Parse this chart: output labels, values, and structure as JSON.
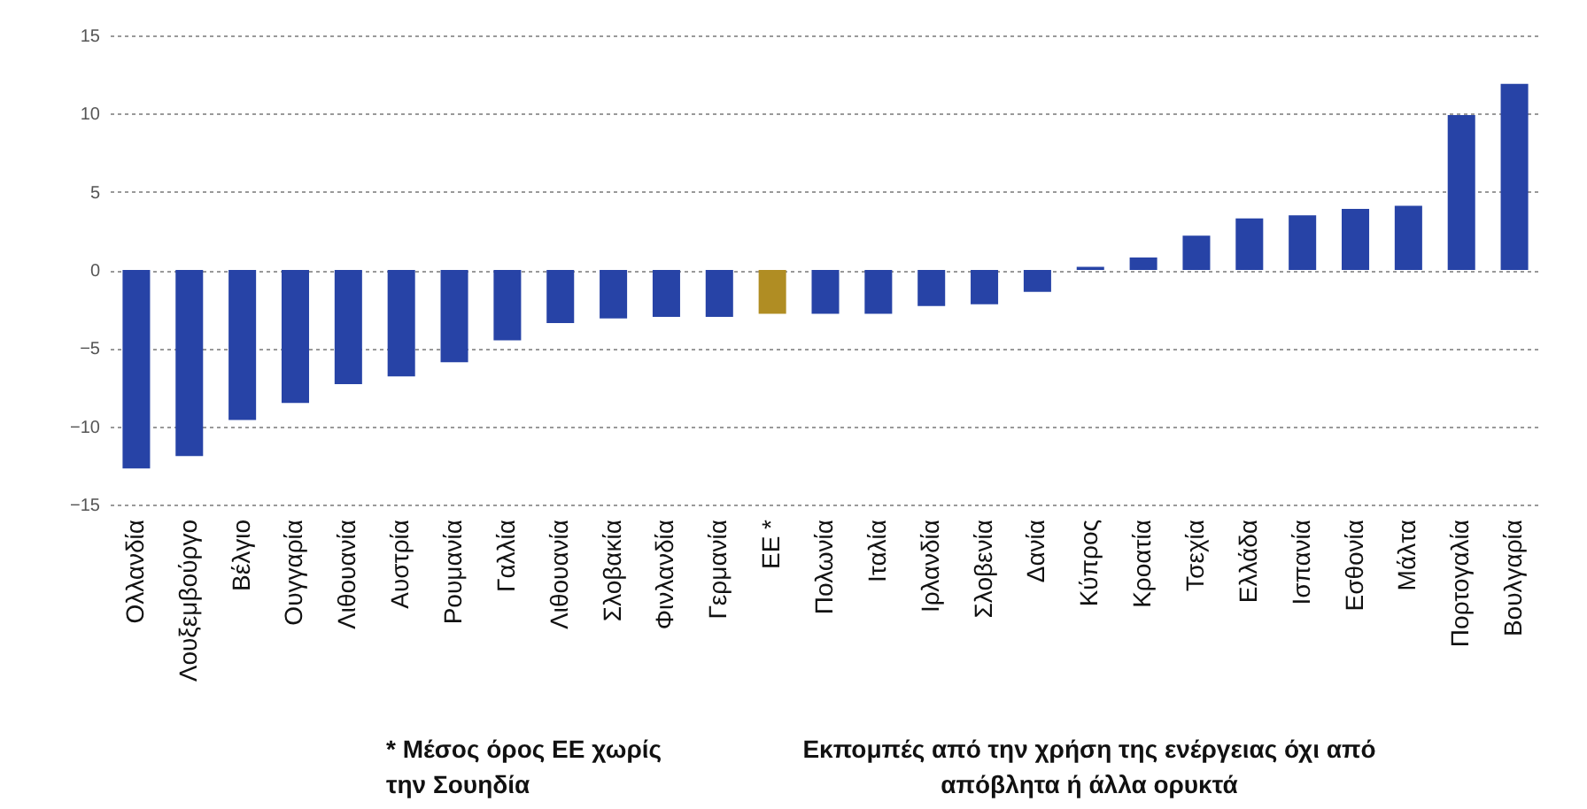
{
  "chart_data": {
    "type": "bar",
    "categories": [
      "Ολλανδία",
      "Λουξεμβούργο",
      "Βέλγιο",
      "Ουγγαρία",
      "Λιθουανία",
      "Αυστρία",
      "Ρουμανία",
      "Γαλλία",
      "Λιθουανία",
      "Σλοβακία",
      "Φινλανδία",
      "Γερμανία",
      "ΕΕ *",
      "Πολωνία",
      "Ιταλία",
      "Ιρλανδία",
      "Σλοβενία",
      "Δανία",
      "Κύπρος",
      "Κροατία",
      "Τσεχία",
      "Ελλάδα",
      "Ισπανία",
      "Εσθονία",
      "Μάλτα",
      "Πορτογαλία",
      "Βουλγαρία"
    ],
    "values": [
      -12.7,
      -11.9,
      -9.6,
      -8.5,
      -7.3,
      -6.8,
      -5.9,
      -4.5,
      -3.4,
      -3.1,
      -3.0,
      -3.0,
      -2.8,
      -2.8,
      -2.8,
      -2.3,
      -2.2,
      -1.4,
      0.2,
      0.8,
      2.2,
      3.3,
      3.5,
      3.9,
      4.1,
      9.9,
      11.9
    ],
    "colors": [
      "#2743a6",
      "#2743a6",
      "#2743a6",
      "#2743a6",
      "#2743a6",
      "#2743a6",
      "#2743a6",
      "#2743a6",
      "#2743a6",
      "#2743a6",
      "#2743a6",
      "#2743a6",
      "#b08d23",
      "#2743a6",
      "#2743a6",
      "#2743a6",
      "#2743a6",
      "#2743a6",
      "#2743a6",
      "#2743a6",
      "#2743a6",
      "#2743a6",
      "#2743a6",
      "#2743a6",
      "#2743a6",
      "#2743a6",
      "#2743a6"
    ],
    "ylim": [
      -15,
      15
    ],
    "yticks": [
      -15,
      -10,
      -5,
      0,
      5,
      10,
      15
    ],
    "grid": "y",
    "line_style": "dotted",
    "annotations": [
      "* Μέσος όρος ΕΕ χωρίς την Σουηδία",
      "Εκπομπές από την χρήση της ενέργειας όχι από απόβλητα ή άλλα ορυκτά"
    ]
  }
}
